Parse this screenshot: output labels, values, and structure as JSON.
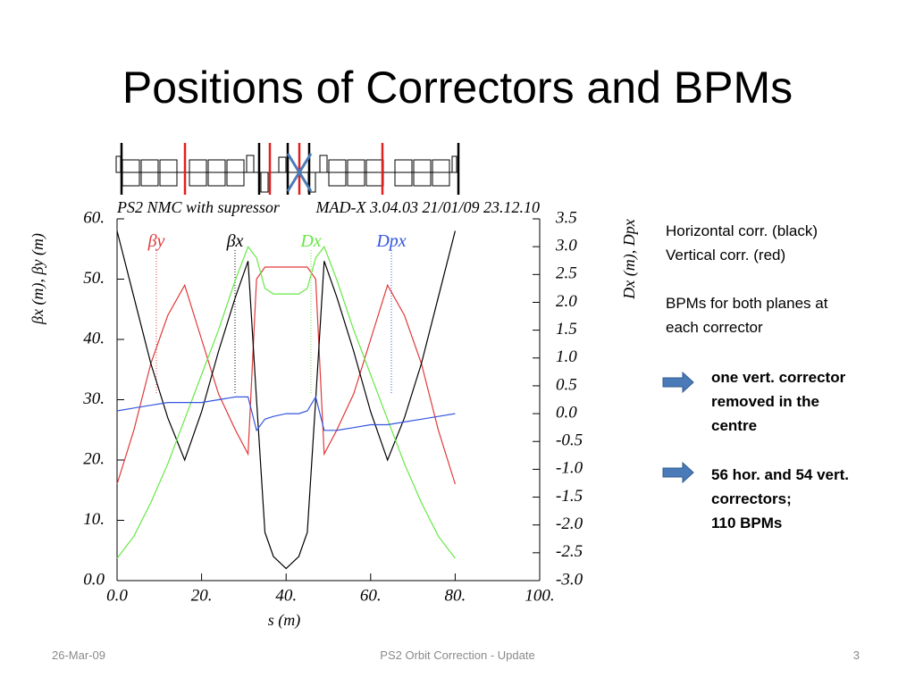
{
  "title": "Positions of Correctors and BPMs",
  "notes": {
    "plain": [
      "Horizontal corr. (black)",
      "Vertical corr. (red)",
      "",
      "BPMs for both planes at",
      "each corrector"
    ],
    "bullet1": [
      "one vert. corrector",
      "removed in the",
      "centre"
    ],
    "bullet2": [
      "56 hor. and 54 vert.",
      "correctors;",
      "110 BPMs"
    ]
  },
  "footer": {
    "date": "26-Mar-09",
    "center": "PS2 Orbit Correction - Update",
    "page": "3"
  },
  "chart_data": {
    "type": "line",
    "header_left": "PS2 NMC with supressor",
    "header_right": "MAD-X 3.04.03  21/01/09 23.12.10",
    "xlabel": "s (m)",
    "ylabel": "βx (m), βy (m)",
    "y2label": "Dx (m), Dpx",
    "x": [
      0,
      4,
      8,
      12,
      16,
      20,
      24,
      28,
      31,
      33,
      35,
      37,
      40,
      43,
      45,
      47,
      49,
      52,
      56,
      60,
      64,
      68,
      72,
      76,
      80
    ],
    "series": [
      {
        "name": "βy",
        "color": "#e03a3a",
        "axis": "y",
        "values": [
          16,
          25,
          36,
          44,
          49,
          40,
          31,
          25,
          21,
          50,
          52,
          52,
          52,
          52,
          52,
          50,
          21,
          25,
          31,
          40,
          49,
          44,
          36,
          25,
          16
        ]
      },
      {
        "name": "βx",
        "color": "#000000",
        "axis": "y",
        "values": [
          58,
          47,
          36,
          27,
          20,
          28,
          38,
          47,
          53,
          30,
          8,
          4,
          2,
          4,
          8,
          30,
          53,
          47,
          38,
          28,
          20,
          27,
          36,
          47,
          58
        ]
      },
      {
        "name": "Dx",
        "color": "#66e844",
        "axis": "y2",
        "values": [
          -2.6,
          -2.2,
          -1.6,
          -0.9,
          -0.1,
          0.7,
          1.5,
          2.4,
          3.0,
          2.8,
          2.25,
          2.15,
          2.15,
          2.15,
          2.25,
          2.8,
          3.0,
          2.4,
          1.5,
          0.7,
          -0.1,
          -0.9,
          -1.6,
          -2.2,
          -2.6
        ]
      },
      {
        "name": "Dpx",
        "color": "#3355dd",
        "axis": "y2",
        "values": [
          0.05,
          0.1,
          0.15,
          0.2,
          0.2,
          0.2,
          0.25,
          0.3,
          0.3,
          -0.3,
          -0.1,
          -0.05,
          0.0,
          0.0,
          0.05,
          0.3,
          -0.3,
          -0.3,
          -0.25,
          -0.2,
          -0.2,
          -0.15,
          -0.1,
          -0.05,
          0.0
        ]
      }
    ],
    "xlim": [
      0,
      100
    ],
    "xticks": [
      {
        "value": 0,
        "label": "0.0"
      },
      {
        "value": 20,
        "label": "20."
      },
      {
        "value": 40,
        "label": "40."
      },
      {
        "value": 60,
        "label": "60."
      },
      {
        "value": 80,
        "label": "80."
      },
      {
        "value": 100,
        "label": "100."
      }
    ],
    "ylim": [
      0,
      60
    ],
    "yticks": [
      {
        "value": 0,
        "label": "0.0"
      },
      {
        "value": 10,
        "label": "10."
      },
      {
        "value": 20,
        "label": "20."
      },
      {
        "value": 30,
        "label": "30."
      },
      {
        "value": 40,
        "label": "40."
      },
      {
        "value": 50,
        "label": "50."
      },
      {
        "value": 60,
        "label": "60."
      }
    ],
    "y2lim": [
      -3,
      3.5
    ],
    "y2ticks": [
      {
        "value": -3,
        "label": "-3.0"
      },
      -2.5,
      {
        "value": -2,
        "label": "-2.0"
      },
      -1.5,
      {
        "value": -1,
        "label": "-1.0"
      },
      -0.5,
      {
        "value": 0,
        "label": "0.0"
      },
      0.5,
      {
        "value": 1,
        "label": "1.0"
      },
      1.5,
      {
        "value": 2,
        "label": "2.0"
      },
      2.5,
      {
        "value": 3,
        "label": "3.0"
      },
      3.5
    ]
  }
}
